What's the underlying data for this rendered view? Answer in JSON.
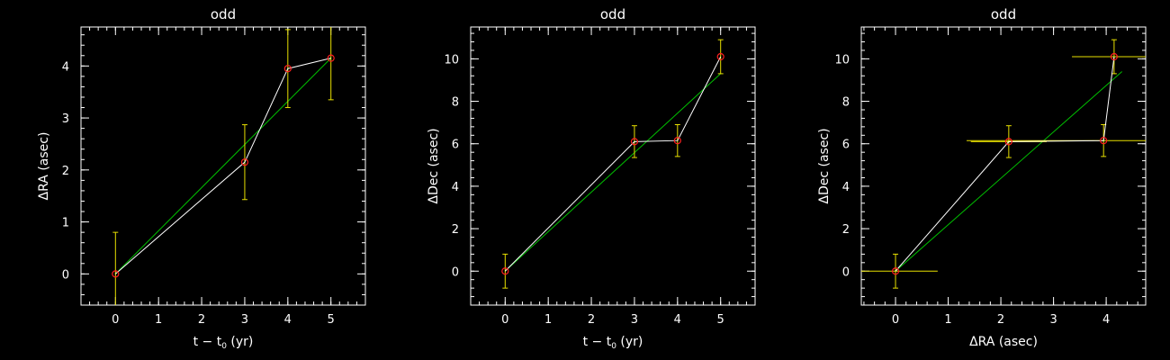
{
  "colors": {
    "background": "#000000",
    "axes": "#ffffff",
    "data_line": "#ffffff",
    "fit_line": "#00c000",
    "error_bars": "#e8e000",
    "markers": "#ff2020"
  },
  "chart_data": [
    {
      "type": "scatter",
      "title": "odd",
      "xlabel": "t − t",
      "xlabel_sub": "0",
      "xlabel_tail": " (yr)",
      "ylabel": "ΔRA (asec)",
      "xlim": [
        -0.8,
        5.8
      ],
      "ylim": [
        -0.6,
        4.75
      ],
      "xticks": [
        0,
        1,
        2,
        3,
        4,
        5
      ],
      "yticks": [
        0,
        1,
        2,
        3,
        4
      ],
      "points": [
        {
          "x": 0,
          "y": 0.0,
          "yerr": 0.8
        },
        {
          "x": 3,
          "y": 2.15,
          "yerr": 0.72
        },
        {
          "x": 4,
          "y": 3.95,
          "yerr": 0.75
        },
        {
          "x": 5,
          "y": 4.15,
          "yerr": 0.8
        }
      ],
      "fit": {
        "x": [
          0,
          5
        ],
        "y": [
          0.0,
          4.15
        ]
      }
    },
    {
      "type": "scatter",
      "title": "odd",
      "xlabel": "t − t",
      "xlabel_sub": "0",
      "xlabel_tail": " (yr)",
      "ylabel": "ΔDec (asec)",
      "xlim": [
        -0.8,
        5.8
      ],
      "ylim": [
        -1.6,
        11.5
      ],
      "xticks": [
        0,
        1,
        2,
        3,
        4,
        5
      ],
      "yticks": [
        0,
        2,
        4,
        6,
        8,
        10
      ],
      "points": [
        {
          "x": 0,
          "y": 0.0,
          "yerr": 0.8
        },
        {
          "x": 3,
          "y": 6.1,
          "yerr": 0.75
        },
        {
          "x": 4,
          "y": 6.15,
          "yerr": 0.75
        },
        {
          "x": 5,
          "y": 10.1,
          "yerr": 0.8
        }
      ],
      "fit": {
        "x": [
          0,
          5
        ],
        "y": [
          0.0,
          9.3
        ]
      }
    },
    {
      "type": "scatter",
      "title": "odd",
      "xlabel": "ΔRA (asec)",
      "xlabel_sub": "",
      "xlabel_tail": "",
      "ylabel": "ΔDec (asec)",
      "xlim": [
        -0.65,
        4.75
      ],
      "ylim": [
        -1.6,
        11.5
      ],
      "xticks": [
        0,
        1,
        2,
        3,
        4
      ],
      "yticks": [
        0,
        2,
        4,
        6,
        8,
        10
      ],
      "points": [
        {
          "x": 0,
          "y": 0.0,
          "yerr": 0.8,
          "xerr": 0.8
        },
        {
          "x": 2.15,
          "y": 6.1,
          "yerr": 0.75,
          "xerr": 0.72
        },
        {
          "x": 3.95,
          "y": 6.15,
          "yerr": 0.75,
          "xerr": 2.6
        },
        {
          "x": 4.15,
          "y": 10.1,
          "yerr": 0.8,
          "xerr": 0.8
        }
      ],
      "fit": {
        "x": [
          0,
          4.3
        ],
        "y": [
          0.0,
          9.4
        ]
      }
    }
  ]
}
